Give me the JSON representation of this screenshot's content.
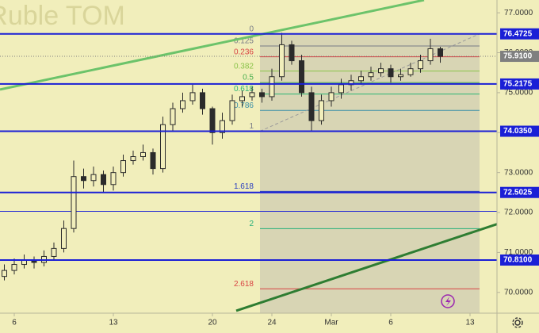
{
  "chart_data": {
    "type": "candlestick",
    "title": "an Ruble TOM",
    "candle_color": "#2b2b2b",
    "x": [
      -0.5,
      0,
      0.5,
      1,
      1.5,
      2,
      2.5,
      3,
      3.5,
      4,
      4.5,
      5,
      5.5,
      6,
      6.5,
      7,
      7.5,
      8,
      8.5,
      9,
      9.5,
      10,
      10.5,
      11,
      11.5,
      12,
      12.5,
      13,
      13.5,
      14,
      14.5,
      15,
      15.5,
      16,
      16.5,
      17,
      17.5,
      18,
      18.5,
      19,
      19.5,
      20,
      20.5,
      21,
      21.5
    ],
    "open": [
      70.4,
      70.55,
      70.7,
      70.8,
      70.75,
      70.9,
      71.1,
      71.6,
      72.9,
      72.8,
      72.95,
      72.7,
      73.0,
      73.3,
      73.4,
      73.5,
      73.1,
      74.2,
      74.6,
      74.8,
      75.0,
      74.6,
      74.0,
      74.3,
      74.8,
      74.9,
      75.0,
      74.9,
      75.4,
      76.2,
      75.8,
      75.0,
      74.3,
      74.8,
      75.0,
      75.2,
      75.3,
      75.4,
      75.5,
      75.6,
      75.4,
      75.45,
      75.6,
      75.8,
      76.1
    ],
    "high": [
      70.7,
      70.85,
      70.95,
      70.9,
      71.05,
      71.25,
      71.8,
      73.3,
      73.1,
      73.15,
      73.05,
      73.15,
      73.45,
      73.55,
      73.7,
      73.6,
      74.4,
      74.75,
      75.0,
      75.2,
      75.1,
      74.65,
      74.5,
      74.95,
      75.05,
      75.15,
      75.1,
      75.6,
      76.5,
      76.3,
      75.95,
      75.15,
      74.95,
      75.15,
      75.35,
      75.45,
      75.55,
      75.65,
      75.75,
      75.7,
      75.6,
      75.75,
      75.95,
      76.35,
      76.15
    ],
    "low": [
      70.3,
      70.45,
      70.6,
      70.6,
      70.65,
      70.8,
      71.0,
      71.5,
      72.6,
      72.65,
      72.5,
      72.55,
      72.9,
      73.2,
      73.3,
      72.95,
      73.0,
      74.05,
      74.5,
      74.7,
      74.45,
      73.7,
      73.85,
      74.2,
      74.65,
      74.8,
      74.75,
      74.8,
      75.3,
      75.7,
      74.9,
      74.05,
      74.2,
      74.65,
      74.85,
      75.05,
      75.2,
      75.3,
      75.4,
      75.25,
      75.3,
      75.4,
      75.5,
      75.7,
      75.75
    ],
    "close": [
      70.55,
      70.7,
      70.8,
      70.75,
      70.9,
      71.1,
      71.6,
      72.9,
      72.8,
      72.95,
      72.7,
      73.0,
      73.3,
      73.4,
      73.5,
      73.1,
      74.2,
      74.6,
      74.8,
      75.0,
      74.6,
      74.0,
      74.3,
      74.8,
      74.9,
      75.0,
      74.9,
      75.4,
      76.2,
      75.8,
      75.0,
      74.3,
      74.8,
      75.0,
      75.2,
      75.3,
      75.4,
      75.5,
      75.6,
      75.4,
      75.45,
      75.6,
      75.8,
      76.1,
      75.91
    ],
    "xlim": [
      -0.72,
      24.36
    ],
    "ylim": [
      69.48,
      77.32
    ],
    "xticks": [
      {
        "value": 0,
        "label": "6"
      },
      {
        "value": 5,
        "label": "13"
      },
      {
        "value": 10,
        "label": "20"
      },
      {
        "value": 13,
        "label": "24"
      },
      {
        "value": 16,
        "label": "Mar"
      },
      {
        "value": 19,
        "label": "6"
      },
      {
        "value": 23,
        "label": "13"
      }
    ],
    "yticks": [
      {
        "value": 70,
        "label": "70.0000"
      },
      {
        "value": 71,
        "label": "71.0000"
      },
      {
        "value": 72,
        "label": "72.0000"
      },
      {
        "value": 73,
        "label": "73.0000"
      },
      {
        "value": 74,
        "label": "74.0000"
      },
      {
        "value": 75,
        "label": "75.0000"
      },
      {
        "value": 76,
        "label": "76.0000"
      },
      {
        "value": 77,
        "label": "77.0000"
      }
    ],
    "level_color": "#1a1fd6",
    "levels": [
      {
        "value": 76.4725,
        "label": "76.4725"
      },
      {
        "value": 75.2175,
        "label": "75.2175"
      },
      {
        "value": 74.035,
        "label": "74.0350"
      },
      {
        "value": 72.5025,
        "label": "72.5025"
      },
      {
        "value": 70.81,
        "label": "70.8100"
      }
    ],
    "extra_lines": [
      72.03
    ],
    "current_price": {
      "value": 75.91,
      "label": "75.9100",
      "color": "#7f7f7f"
    },
    "fib": {
      "start_x": 12.4,
      "end_x": 23.48,
      "high": 76.4725,
      "low": 74.035,
      "levels": [
        0,
        0.125,
        0.236,
        0.382,
        0.5,
        0.618,
        0.786,
        1,
        1.618,
        2,
        2.618
      ],
      "colors": [
        "#787b86",
        "#787b86",
        "#d84343",
        "#8bc34a",
        "#4caf50",
        "#2bb673",
        "#3a8fa8",
        "#787b86",
        "#2a3ec0",
        "#26b07a",
        "#d84343"
      ]
    },
    "trendlines": [
      {
        "color": "#6cc36a",
        "x": [
          -0.72,
          20.68
        ],
        "y": [
          75.08,
          77.32
        ]
      },
      {
        "color": "#2e7d32",
        "x": [
          11.2,
          24.36
        ],
        "y": [
          69.54,
          71.71
        ]
      }
    ]
  }
}
